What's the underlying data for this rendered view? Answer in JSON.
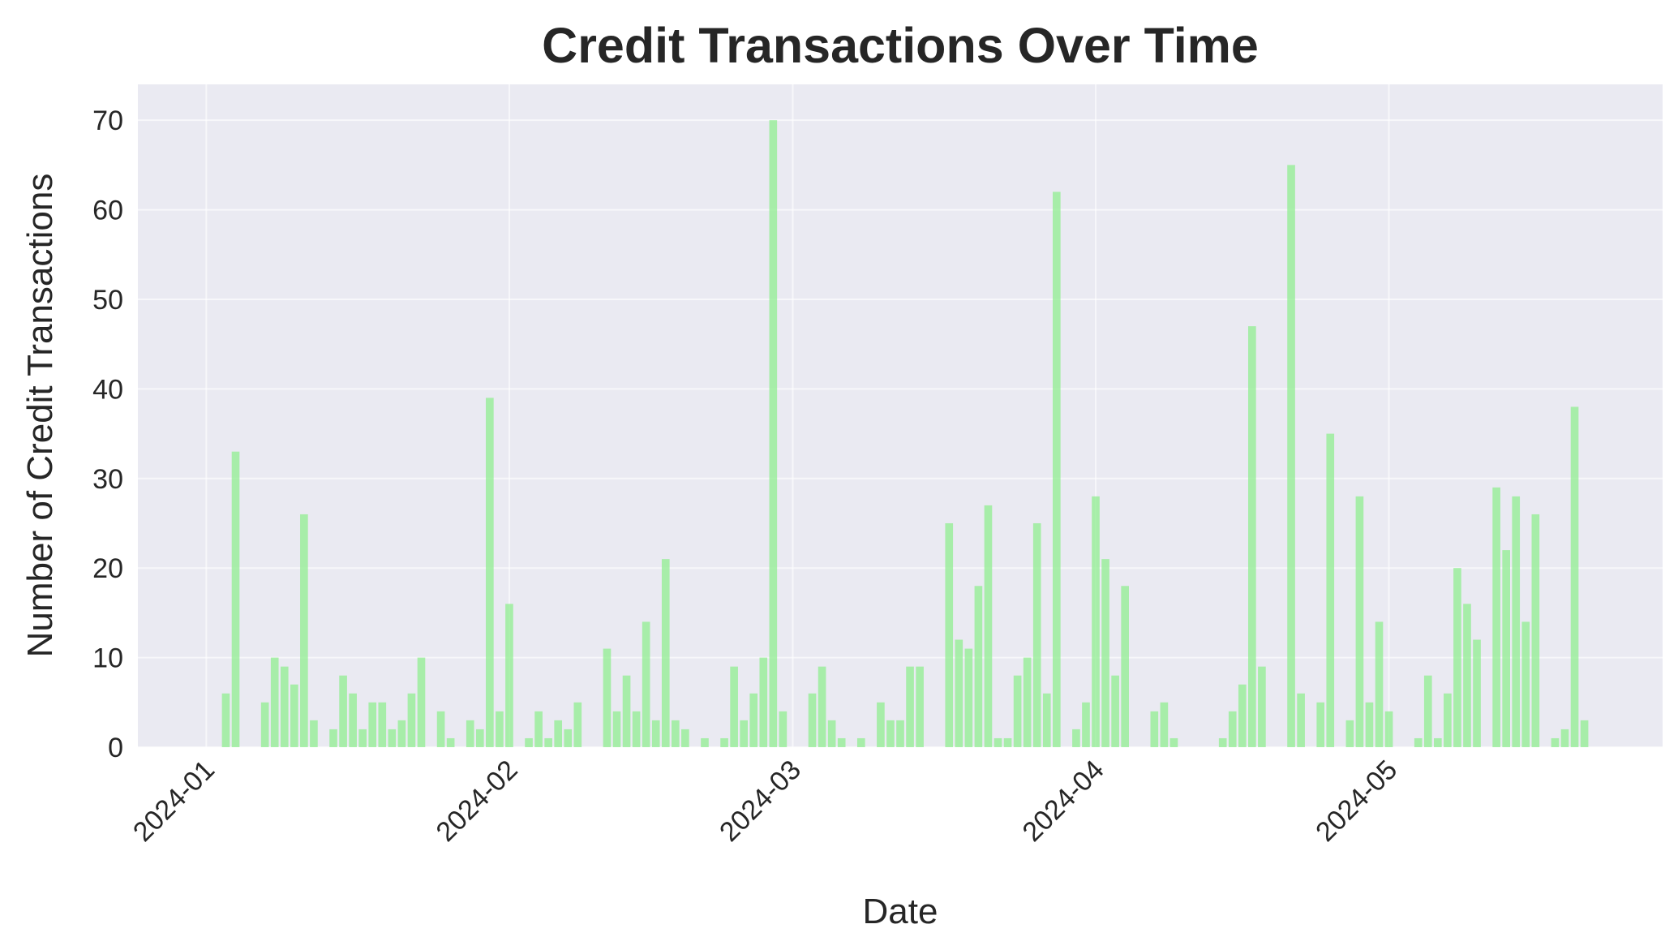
{
  "chart_data": {
    "type": "bar",
    "title": "Credit Transactions Over Time",
    "xlabel": "Date",
    "ylabel": "Number of Credit Transactions",
    "ylim": [
      0,
      74
    ],
    "yticks": [
      0,
      10,
      20,
      30,
      40,
      50,
      60,
      70
    ],
    "xticks": [
      "2024-01",
      "2024-02",
      "2024-03",
      "2024-04",
      "2024-05"
    ],
    "xlim": [
      "2023-12-25",
      "2024-05-29"
    ],
    "grid": true,
    "colors": {
      "bar": "#90ee90",
      "plot_background": "#eaeaf2",
      "grid": "#ffffff",
      "text": "#262626"
    },
    "x": [
      "2024-01-03",
      "2024-01-04",
      "2024-01-07",
      "2024-01-08",
      "2024-01-09",
      "2024-01-10",
      "2024-01-11",
      "2024-01-12",
      "2024-01-14",
      "2024-01-15",
      "2024-01-16",
      "2024-01-17",
      "2024-01-18",
      "2024-01-19",
      "2024-01-20",
      "2024-01-21",
      "2024-01-22",
      "2024-01-23",
      "2024-01-25",
      "2024-01-26",
      "2024-01-28",
      "2024-01-29",
      "2024-01-30",
      "2024-01-31",
      "2024-02-01",
      "2024-02-03",
      "2024-02-04",
      "2024-02-05",
      "2024-02-06",
      "2024-02-07",
      "2024-02-08",
      "2024-02-11",
      "2024-02-12",
      "2024-02-13",
      "2024-02-14",
      "2024-02-15",
      "2024-02-16",
      "2024-02-17",
      "2024-02-18",
      "2024-02-19",
      "2024-02-21",
      "2024-02-23",
      "2024-02-24",
      "2024-02-25",
      "2024-02-26",
      "2024-02-27",
      "2024-02-28",
      "2024-02-29",
      "2024-03-03",
      "2024-03-04",
      "2024-03-05",
      "2024-03-06",
      "2024-03-08",
      "2024-03-10",
      "2024-03-11",
      "2024-03-12",
      "2024-03-13",
      "2024-03-14",
      "2024-03-17",
      "2024-03-18",
      "2024-03-19",
      "2024-03-20",
      "2024-03-21",
      "2024-03-22",
      "2024-03-23",
      "2024-03-24",
      "2024-03-25",
      "2024-03-26",
      "2024-03-27",
      "2024-03-28",
      "2024-03-30",
      "2024-03-31",
      "2024-04-01",
      "2024-04-02",
      "2024-04-03",
      "2024-04-04",
      "2024-04-07",
      "2024-04-08",
      "2024-04-09",
      "2024-04-14",
      "2024-04-15",
      "2024-04-16",
      "2024-04-17",
      "2024-04-18",
      "2024-04-21",
      "2024-04-22",
      "2024-04-24",
      "2024-04-25",
      "2024-04-27",
      "2024-04-28",
      "2024-04-29",
      "2024-04-30",
      "2024-05-01",
      "2024-05-04",
      "2024-05-05",
      "2024-05-06",
      "2024-05-07",
      "2024-05-08",
      "2024-05-09",
      "2024-05-10",
      "2024-05-12",
      "2024-05-13",
      "2024-05-14",
      "2024-05-15",
      "2024-05-16",
      "2024-05-18",
      "2024-05-19",
      "2024-05-20",
      "2024-05-21"
    ],
    "values": [
      6,
      33,
      5,
      10,
      9,
      7,
      26,
      3,
      2,
      8,
      6,
      2,
      5,
      5,
      2,
      3,
      6,
      10,
      4,
      1,
      3,
      2,
      39,
      4,
      16,
      1,
      4,
      1,
      3,
      2,
      5,
      11,
      4,
      8,
      4,
      14,
      3,
      21,
      3,
      2,
      1,
      1,
      9,
      3,
      6,
      10,
      70,
      4,
      6,
      9,
      3,
      1,
      1,
      5,
      3,
      3,
      9,
      9,
      25,
      12,
      11,
      18,
      27,
      1,
      1,
      8,
      10,
      25,
      6,
      62,
      2,
      5,
      28,
      21,
      8,
      18,
      4,
      5,
      1,
      1,
      4,
      7,
      47,
      9,
      65,
      6,
      5,
      35,
      3,
      28,
      5,
      14,
      4,
      1,
      8,
      1,
      6,
      20,
      16,
      12,
      29,
      22,
      28,
      14,
      26,
      1,
      2,
      38,
      3
    ]
  }
}
